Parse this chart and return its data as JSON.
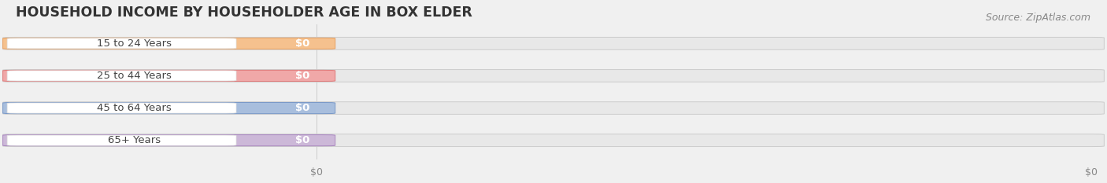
{
  "title": "HOUSEHOLD INCOME BY HOUSEHOLDER AGE IN BOX ELDER",
  "source": "Source: ZipAtlas.com",
  "categories": [
    "15 to 24 Years",
    "25 to 44 Years",
    "45 to 64 Years",
    "65+ Years"
  ],
  "values": [
    0,
    0,
    0,
    0
  ],
  "bar_colors": [
    "#f5c18e",
    "#f0a8a8",
    "#a8bedd",
    "#ccb8d8"
  ],
  "bar_edge_colors": [
    "#e8a060",
    "#e07878",
    "#7898c8",
    "#aa88c0"
  ],
  "background_color": "#f0f0f0",
  "bar_bg_color": "#e8e8e8",
  "bar_bg_edge_color": "#cccccc",
  "white_oval_color": "#ffffff",
  "figsize": [
    14.06,
    2.33
  ],
  "dpi": 100,
  "title_fontsize": 12.5,
  "label_fontsize": 9.5,
  "source_fontsize": 9,
  "xtick_positions": [
    0.28,
    1.0
  ],
  "xtick_labels": [
    "$0",
    "$0"
  ]
}
